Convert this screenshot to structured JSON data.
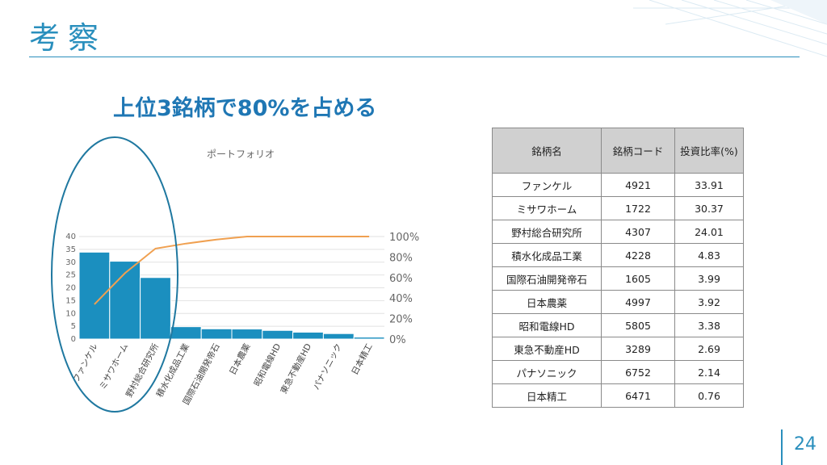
{
  "slide": {
    "title": "考察",
    "headline": "上位3銘柄で80%を占める",
    "page_number": "24",
    "accent_color": "#2a8fbd"
  },
  "table": {
    "headers": [
      "銘柄名",
      "銘柄コード",
      "投資比率(%)"
    ],
    "rows": [
      [
        "ファンケル",
        "4921",
        "33.91"
      ],
      [
        "ミサワホーム",
        "1722",
        "30.37"
      ],
      [
        "野村総合研究所",
        "4307",
        "24.01"
      ],
      [
        "積水化成品工業",
        "4228",
        "4.83"
      ],
      [
        "国際石油開発帝石",
        "1605",
        "3.99"
      ],
      [
        "日本農薬",
        "4997",
        "3.92"
      ],
      [
        "昭和電線HD",
        "5805",
        "3.38"
      ],
      [
        "東急不動産HD",
        "3289",
        "2.69"
      ],
      [
        "パナソニック",
        "6752",
        "2.14"
      ],
      [
        "日本精工",
        "6471",
        "0.76"
      ]
    ]
  },
  "chart_data": {
    "type": "bar",
    "title": "ポートフォリオ",
    "categories": [
      "ファンケル",
      "ミサワホーム",
      "野村総合研究所",
      "積水化成品工業",
      "国際石油開発帝石",
      "日本農薬",
      "昭和電線HD",
      "東急不動産HD",
      "パナソニック",
      "日本精工"
    ],
    "series": [
      {
        "type": "bar",
        "axis": "left",
        "color": "#1b8fbf",
        "values": [
          33.91,
          30.37,
          24.01,
          4.83,
          3.99,
          3.92,
          3.38,
          2.69,
          2.14,
          0.76
        ]
      },
      {
        "type": "line",
        "axis": "right",
        "color": "#f0a050",
        "values": [
          0.3391,
          0.6428,
          0.8829,
          0.9312,
          0.9711,
          1.0103,
          1.0441,
          1.071,
          1.0924,
          1.1
        ]
      }
    ],
    "left_axis": {
      "ylim": [
        0,
        40
      ],
      "ticks": [
        "0",
        "5",
        "10",
        "15",
        "20",
        "25",
        "30",
        "35",
        "40"
      ]
    },
    "right_axis": {
      "ylim": [
        0,
        1
      ],
      "ticks": [
        "0%",
        "20%",
        "40%",
        "60%",
        "80%",
        "100%"
      ]
    },
    "grid": true,
    "annotation": {
      "shape": "ellipse",
      "color": "#1f78a0",
      "target": "top-3 bars"
    }
  }
}
